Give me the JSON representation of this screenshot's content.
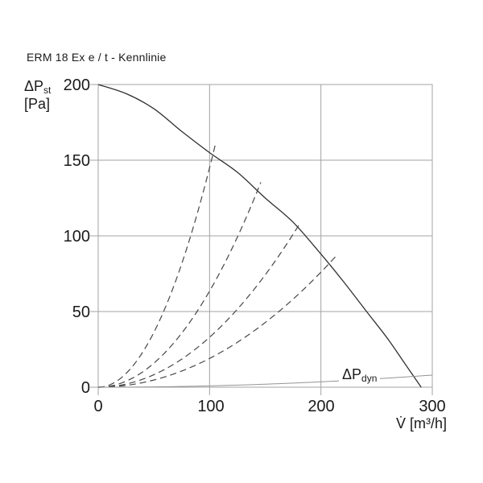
{
  "header": {
    "title": "ERM 18 Ex e / t - Kennlinie"
  },
  "chart_data": {
    "type": "line",
    "title": "ERM 18 Ex e / t - Kennlinie",
    "x_axis": {
      "symbol": "V̇",
      "unit": "[m³/h]",
      "range": [
        0,
        300
      ],
      "ticks": [
        "0",
        "100",
        "200",
        "300"
      ]
    },
    "y_axis": {
      "symbol": "ΔP",
      "symbol_sub": "st",
      "unit": "[Pa]",
      "range": [
        0,
        200
      ],
      "ticks": [
        "200",
        "150",
        "100",
        "50",
        "0"
      ]
    },
    "gridlines": {
      "x": [
        100,
        200
      ],
      "y": [
        50,
        100,
        150
      ],
      "border": true
    },
    "annotation": {
      "label_main": "ΔP",
      "label_sub": "dyn"
    },
    "series": [
      {
        "name": "fan-curve",
        "style": "solid",
        "points": [
          [
            0,
            200
          ],
          [
            25,
            194
          ],
          [
            50,
            184
          ],
          [
            75,
            169
          ],
          [
            100,
            155
          ],
          [
            125,
            142
          ],
          [
            150,
            125
          ],
          [
            175,
            109
          ],
          [
            200,
            88
          ],
          [
            220,
            70
          ],
          [
            241,
            50
          ],
          [
            260,
            32
          ],
          [
            275,
            16
          ],
          [
            290,
            0
          ]
        ]
      },
      {
        "name": "system-curve-1",
        "style": "dashed",
        "model": "parabola",
        "k": 0.0145,
        "v_end": 105,
        "end_point": [
          105,
          160
        ]
      },
      {
        "name": "system-curve-2",
        "style": "dashed",
        "model": "parabola",
        "k": 0.00635,
        "v_end": 146,
        "end_point": [
          146,
          135
        ]
      },
      {
        "name": "system-curve-3",
        "style": "dashed",
        "model": "parabola",
        "k": 0.0033,
        "v_end": 181,
        "end_point": [
          181,
          108
        ]
      },
      {
        "name": "system-curve-4",
        "style": "dashed",
        "model": "parabola",
        "k": 0.0019,
        "v_end": 213,
        "end_point": [
          213,
          86
        ]
      },
      {
        "name": "dyn-curve",
        "style": "thin",
        "model": "parabola",
        "k": 8.9e-05,
        "v_end": 300,
        "end_point": [
          300,
          8
        ]
      }
    ],
    "colors": {
      "text": "#1a1a1a",
      "grid": "#a3a3a3",
      "curve": "#303030",
      "dashed": "#474747",
      "dyn": "#949494"
    }
  }
}
